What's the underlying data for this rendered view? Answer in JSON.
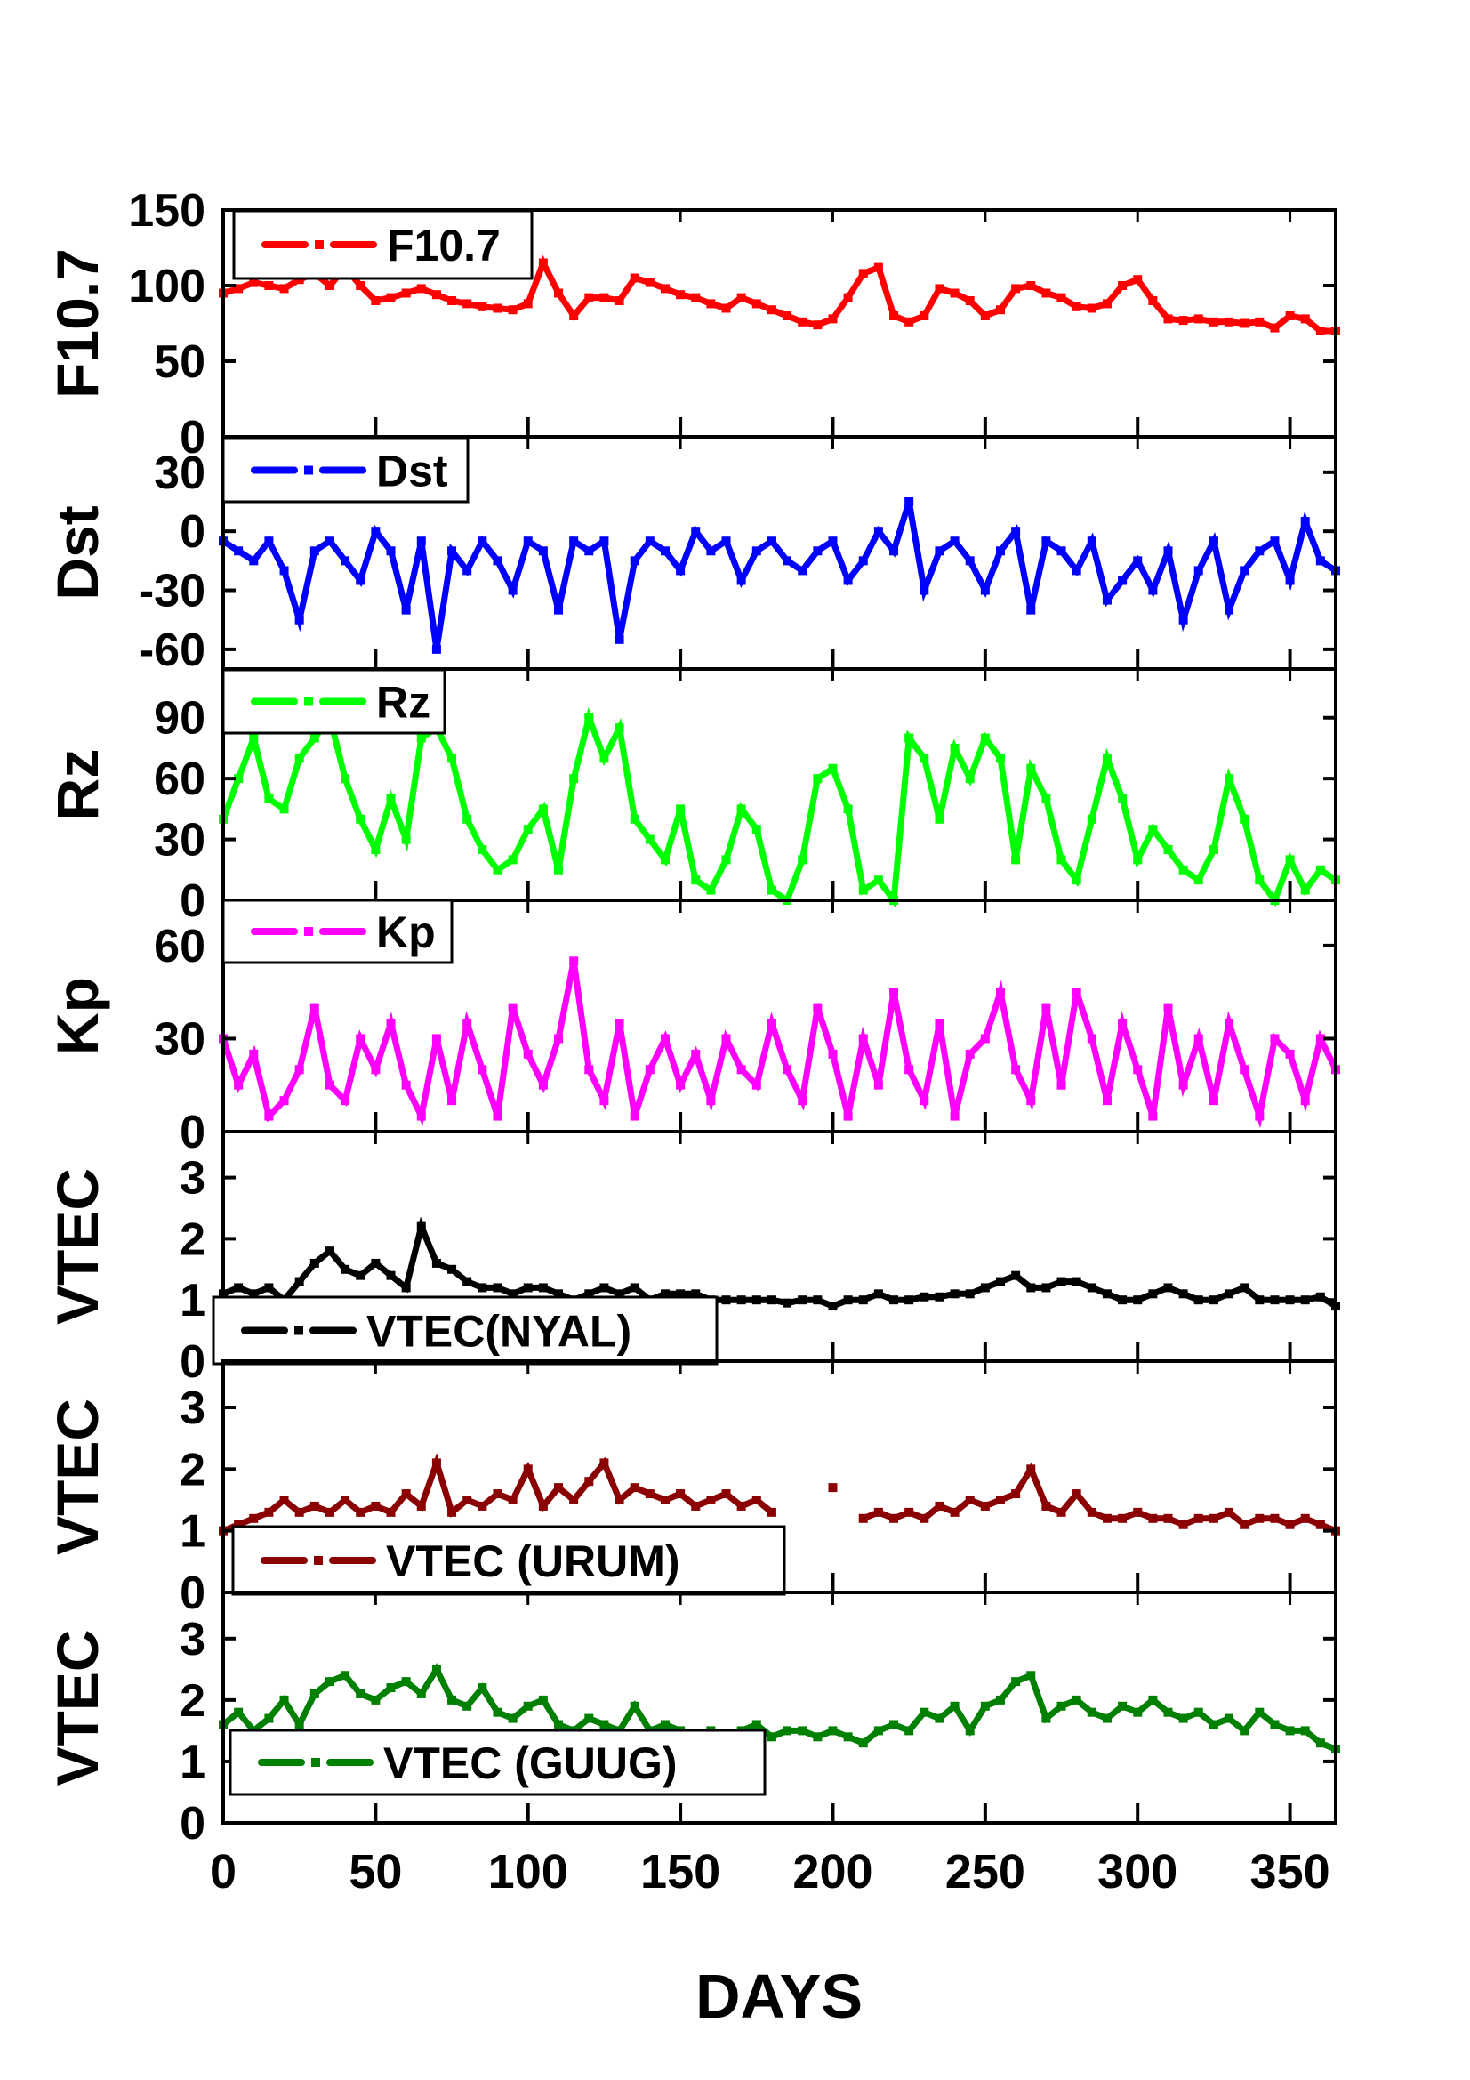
{
  "chart_data": [
    {
      "type": "line",
      "name": "F10.7",
      "ylabel": "F10.7",
      "legend": "F10.7",
      "color": "#ff0000",
      "ylim": [
        0,
        150
      ],
      "yticks": [
        0,
        50,
        100,
        150
      ],
      "x_start": 0,
      "x_step": 5,
      "values": [
        95,
        98,
        102,
        100,
        98,
        104,
        108,
        100,
        112,
        100,
        90,
        92,
        95,
        98,
        94,
        90,
        88,
        86,
        85,
        84,
        88,
        115,
        95,
        80,
        92,
        92,
        90,
        105,
        102,
        98,
        94,
        92,
        88,
        85,
        92,
        88,
        84,
        80,
        76,
        74,
        78,
        92,
        108,
        112,
        80,
        76,
        80,
        98,
        95,
        90,
        80,
        84,
        98,
        100,
        95,
        92,
        86,
        85,
        88,
        100,
        104,
        90,
        78,
        77,
        78,
        76,
        76,
        75,
        76,
        72,
        80,
        78,
        70,
        70
      ]
    },
    {
      "type": "line",
      "name": "Dst",
      "ylabel": "Dst",
      "legend": "Dst",
      "color": "#0000ff",
      "ylim": [
        -70,
        48
      ],
      "yticks": [
        -60,
        -30,
        0,
        30
      ],
      "x_start": 0,
      "x_step": 5,
      "values": [
        -5,
        -10,
        -15,
        -5,
        -20,
        -45,
        -10,
        -5,
        -15,
        -25,
        0,
        -10,
        -40,
        -5,
        -60,
        -10,
        -20,
        -5,
        -15,
        -30,
        -5,
        -10,
        -40,
        -5,
        -10,
        -5,
        -55,
        -15,
        -5,
        -10,
        -20,
        0,
        -10,
        -5,
        -25,
        -10,
        -5,
        -15,
        -20,
        -10,
        -5,
        -25,
        -15,
        0,
        -10,
        15,
        -30,
        -10,
        -5,
        -15,
        -30,
        -10,
        0,
        -40,
        -5,
        -10,
        -20,
        -5,
        -35,
        -25,
        -15,
        -30,
        -10,
        -45,
        -20,
        -5,
        -40,
        -20,
        -10,
        -5,
        -25,
        5,
        -15,
        -20
      ]
    },
    {
      "type": "line",
      "name": "Rz",
      "ylabel": "Rz",
      "legend": "Rz",
      "color": "#00ff00",
      "ylim": [
        0,
        114
      ],
      "yticks": [
        0,
        30,
        60,
        90
      ],
      "x_start": 0,
      "x_step": 5,
      "values": [
        40,
        60,
        80,
        50,
        45,
        70,
        80,
        90,
        60,
        40,
        25,
        50,
        30,
        80,
        85,
        70,
        40,
        25,
        15,
        20,
        35,
        45,
        15,
        60,
        90,
        70,
        85,
        40,
        30,
        20,
        45,
        10,
        5,
        20,
        45,
        35,
        5,
        0,
        20,
        60,
        65,
        45,
        5,
        10,
        0,
        80,
        70,
        40,
        75,
        60,
        80,
        70,
        20,
        65,
        50,
        20,
        10,
        40,
        70,
        50,
        20,
        35,
        25,
        15,
        10,
        25,
        60,
        40,
        10,
        0,
        20,
        5,
        15,
        10
      ]
    },
    {
      "type": "line",
      "name": "Kp",
      "ylabel": "Kp",
      "legend": "Kp",
      "color": "#ff00ff",
      "ylim": [
        0,
        74.6
      ],
      "yticks": [
        0,
        30,
        60
      ],
      "x_start": 0,
      "x_step": 5,
      "values": [
        30,
        15,
        25,
        5,
        10,
        20,
        40,
        15,
        10,
        30,
        20,
        35,
        15,
        5,
        30,
        10,
        35,
        20,
        5,
        40,
        25,
        15,
        30,
        55,
        20,
        10,
        35,
        5,
        20,
        30,
        15,
        25,
        10,
        30,
        20,
        15,
        35,
        20,
        10,
        40,
        25,
        5,
        30,
        15,
        45,
        20,
        10,
        35,
        5,
        25,
        30,
        45,
        20,
        10,
        40,
        15,
        45,
        30,
        10,
        35,
        20,
        5,
        40,
        15,
        30,
        10,
        35,
        20,
        5,
        30,
        25,
        10,
        30,
        20
      ]
    },
    {
      "type": "line",
      "name": "VTEC(NYAL)",
      "ylabel": "VTEC",
      "legend": "VTEC(NYAL)",
      "color": "#000000",
      "ylim": [
        0,
        3.75
      ],
      "yticks": [
        0,
        1,
        2,
        3
      ],
      "x_start": 0,
      "x_step": 5,
      "values": [
        1.1,
        1.2,
        1.1,
        1.2,
        1.0,
        1.3,
        1.6,
        1.8,
        1.5,
        1.4,
        1.6,
        1.4,
        1.2,
        2.2,
        1.6,
        1.5,
        1.3,
        1.2,
        1.2,
        1.1,
        1.2,
        1.2,
        1.1,
        1.0,
        1.1,
        1.2,
        1.1,
        1.2,
        1.0,
        1.1,
        1.1,
        1.1,
        1.0,
        1.0,
        1.0,
        1.0,
        1.0,
        0.95,
        1.0,
        1.0,
        0.9,
        1.0,
        1.0,
        1.1,
        1.0,
        1.0,
        1.05,
        1.05,
        1.1,
        1.1,
        1.2,
        1.3,
        1.4,
        1.2,
        1.2,
        1.3,
        1.3,
        1.2,
        1.1,
        1.0,
        1.0,
        1.1,
        1.2,
        1.1,
        1.0,
        1.0,
        1.1,
        1.2,
        1.0,
        1.0,
        1.0,
        1.0,
        1.05,
        0.9
      ]
    },
    {
      "type": "line",
      "name": "VTEC (URUM)",
      "ylabel": "VTEC",
      "legend": "VTEC (URUM)",
      "color": "#8b0000",
      "ylim": [
        0,
        3.75
      ],
      "yticks": [
        0,
        1,
        2,
        3
      ],
      "x_start": 0,
      "x_step": 5,
      "values": [
        1.0,
        1.1,
        1.2,
        1.3,
        1.5,
        1.3,
        1.4,
        1.3,
        1.5,
        1.3,
        1.4,
        1.3,
        1.6,
        1.4,
        2.1,
        1.3,
        1.5,
        1.4,
        1.6,
        1.5,
        2.0,
        1.4,
        1.7,
        1.5,
        1.8,
        2.1,
        1.5,
        1.7,
        1.6,
        1.5,
        1.6,
        1.4,
        1.5,
        1.6,
        1.4,
        1.5,
        1.3,
        null,
        null,
        null,
        1.7,
        null,
        1.2,
        1.3,
        1.2,
        1.3,
        1.2,
        1.4,
        1.3,
        1.5,
        1.4,
        1.5,
        1.6,
        2.0,
        1.4,
        1.3,
        1.6,
        1.3,
        1.2,
        1.2,
        1.3,
        1.2,
        1.2,
        1.1,
        1.2,
        1.2,
        1.3,
        1.1,
        1.2,
        1.2,
        1.1,
        1.2,
        1.1,
        1.0
      ]
    },
    {
      "type": "line",
      "name": "VTEC (GUUG)",
      "ylabel": "VTEC",
      "legend": "VTEC (GUUG)",
      "color": "#008000",
      "ylim": [
        0,
        3.75
      ],
      "yticks": [
        0,
        1,
        2,
        3
      ],
      "x_start": 0,
      "x_step": 5,
      "values": [
        1.6,
        1.8,
        1.5,
        1.7,
        2.0,
        1.6,
        2.1,
        2.3,
        2.4,
        2.1,
        2.0,
        2.2,
        2.3,
        2.1,
        2.5,
        2.0,
        1.9,
        2.2,
        1.8,
        1.7,
        1.9,
        2.0,
        1.6,
        1.5,
        1.7,
        1.6,
        1.5,
        1.9,
        1.5,
        1.6,
        1.5,
        1.4,
        1.5,
        1.4,
        1.5,
        1.6,
        1.4,
        1.5,
        1.5,
        1.4,
        1.5,
        1.4,
        1.3,
        1.5,
        1.6,
        1.5,
        1.8,
        1.7,
        1.9,
        1.5,
        1.9,
        2.0,
        2.3,
        2.4,
        1.7,
        1.9,
        2.0,
        1.8,
        1.7,
        1.9,
        1.8,
        2.0,
        1.8,
        1.7,
        1.8,
        1.6,
        1.7,
        1.5,
        1.8,
        1.6,
        1.5,
        1.5,
        1.3,
        1.2
      ]
    }
  ],
  "xaxis": {
    "label": "DAYS",
    "xlim": [
      0,
      365
    ],
    "xticks": [
      0,
      50,
      100,
      150,
      200,
      250,
      300,
      350
    ]
  }
}
